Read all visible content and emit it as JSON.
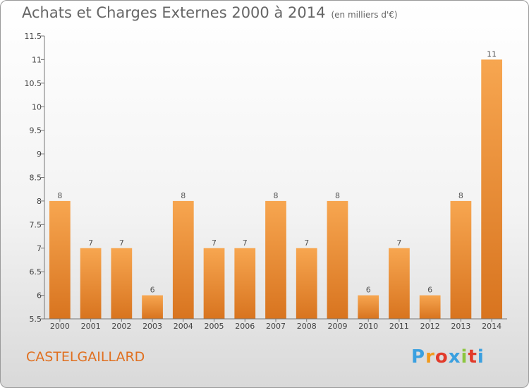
{
  "header": {
    "title": "Achats et Charges Externes 2000 à 2014",
    "subtitle": "(en milliers d'€)"
  },
  "commune": "CASTELGAILLARD",
  "logo": {
    "text": "Proxiti",
    "colors": [
      "#3aa0e0",
      "#f29a1b",
      "#e23a2a",
      "#3aa0e0",
      "#8cc63f",
      "#e23a2a",
      "#3aa0e0"
    ]
  },
  "chart_data": {
    "type": "bar",
    "categories": [
      "2000",
      "2001",
      "2002",
      "2003",
      "2004",
      "2005",
      "2006",
      "2007",
      "2008",
      "2009",
      "2010",
      "2011",
      "2012",
      "2013",
      "2014"
    ],
    "values": [
      8,
      7,
      7,
      6,
      8,
      7,
      7,
      8,
      7,
      8,
      6,
      7,
      6,
      8,
      11
    ],
    "value_labels": [
      "8",
      "7",
      "7",
      "6",
      "8",
      "7",
      "7",
      "8",
      "7",
      "8",
      "6",
      "7",
      "6",
      "8",
      "11"
    ],
    "ylim": [
      5.5,
      11.5
    ],
    "yticks": [
      5.5,
      6,
      6.5,
      7,
      7.5,
      8,
      8.5,
      9,
      9.5,
      10,
      10.5,
      11,
      11.5
    ],
    "ytick_labels": [
      "5.5",
      "6",
      "6.5",
      "7",
      "7.5",
      "8",
      "8.5",
      "9",
      "9.5",
      "10",
      "10.5",
      "11",
      "11.5"
    ],
    "bar_color_light": "#f7a650",
    "bar_color_dark": "#d8741f",
    "grid": false
  }
}
